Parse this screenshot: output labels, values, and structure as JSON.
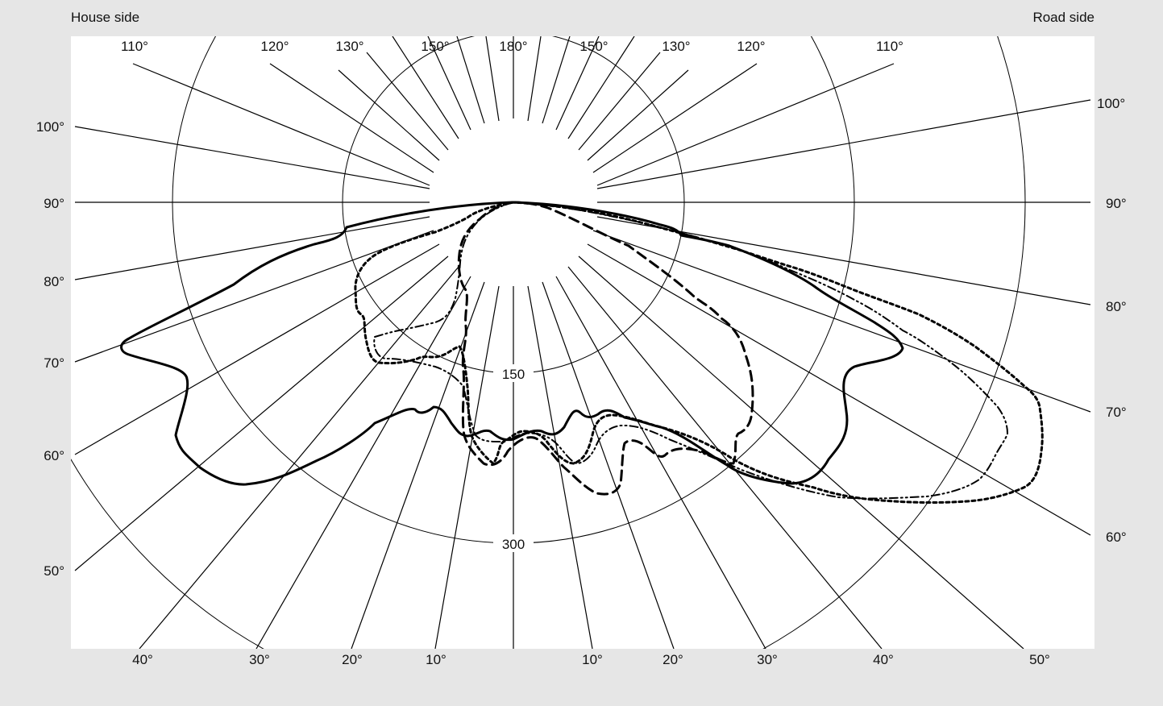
{
  "header": {
    "left_label": "House side",
    "right_label": "Road side"
  },
  "colors": {
    "page_background": "#e6e6e6",
    "plot_background": "#ffffff",
    "ink": "#000000"
  },
  "angle_labels": {
    "top": [
      "110°",
      "120°",
      "130°",
      "150°",
      "180°",
      "150°",
      "130°",
      "120°",
      "110°"
    ],
    "left": [
      "100°",
      "90°",
      "80°",
      "70°",
      "60°",
      "50°"
    ],
    "right": [
      "100°",
      "90°",
      "80°",
      "70°",
      "60°"
    ],
    "bottom": [
      "40°",
      "30°",
      "20°",
      "10°",
      "10°",
      "20°",
      "30°",
      "40°",
      "50°"
    ]
  },
  "radial_labels": [
    "150",
    "300"
  ],
  "chart_data": {
    "type": "polar",
    "radial_ticks": [
      150,
      300
    ],
    "curves": [
      {
        "line_style": "solid"
      },
      {
        "line_style": "dashed"
      },
      {
        "line_style": "dotted"
      },
      {
        "line_style": "dash-dot-dot"
      }
    ]
  }
}
